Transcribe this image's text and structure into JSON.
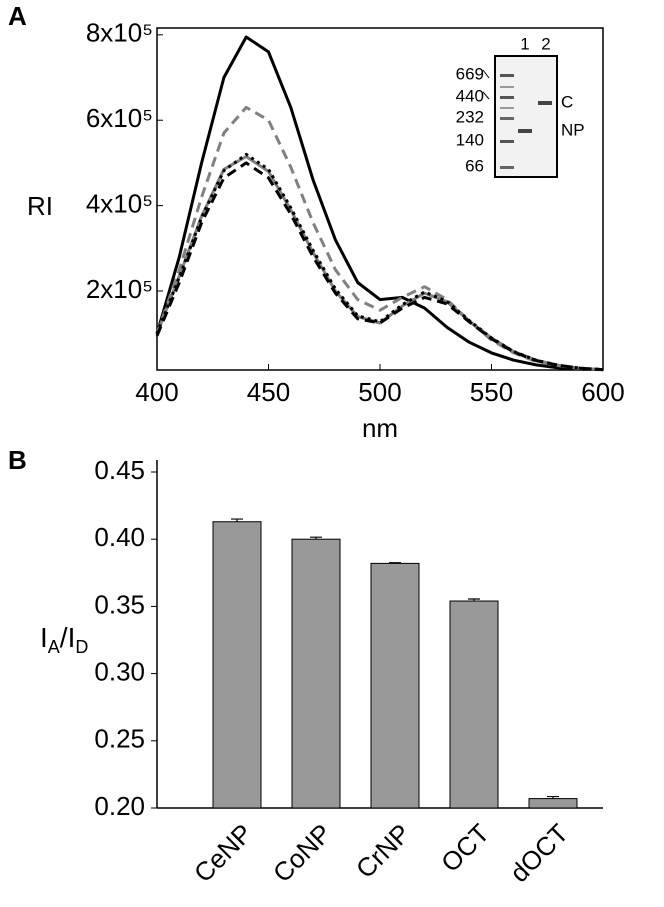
{
  "chart_data": [
    {
      "type": "line",
      "panel": "A",
      "ylabel": "RI",
      "xlabel": "nm",
      "x": [
        400,
        410,
        420,
        430,
        440,
        450,
        460,
        470,
        480,
        490,
        500,
        510,
        520,
        530,
        540,
        550,
        560,
        570,
        580,
        590,
        600
      ],
      "xlim": [
        400,
        600
      ],
      "xticks": [
        400,
        450,
        500,
        550,
        600
      ],
      "ylim": [
        15000,
        816000
      ],
      "yticks": [
        {
          "value": 200000,
          "label": "2x10⁵"
        },
        {
          "value": 400000,
          "label": "4x10⁵"
        },
        {
          "value": 600000,
          "label": "6x10⁵"
        },
        {
          "value": 800000,
          "label": "8x10⁵"
        }
      ],
      "series": [
        {
          "color": "#000000",
          "dash": "solid",
          "values": [
            100000,
            280000,
            500000,
            700000,
            795000,
            760000,
            630000,
            460000,
            320000,
            220000,
            180000,
            185000,
            160000,
            115000,
            80000,
            55000,
            38000,
            27000,
            20000,
            17000,
            16000
          ]
        },
        {
          "color": "#808080",
          "dash": "dashed",
          "values": [
            100000,
            250000,
            420000,
            570000,
            630000,
            600000,
            490000,
            360000,
            250000,
            180000,
            155000,
            185000,
            210000,
            180000,
            130000,
            85000,
            55000,
            35000,
            25000,
            18000,
            16000
          ]
        },
        {
          "color": "#808080",
          "dash": "solid",
          "values": [
            100000,
            235000,
            375000,
            485000,
            515000,
            480000,
            390000,
            290000,
            200000,
            140000,
            125000,
            165000,
            195000,
            175000,
            130000,
            90000,
            58000,
            38000,
            26000,
            19000,
            16000
          ]
        },
        {
          "color": "#000000",
          "dash": "dotted",
          "values": [
            100000,
            232000,
            372000,
            482000,
            520000,
            485000,
            395000,
            295000,
            205000,
            142000,
            128000,
            168000,
            198000,
            176000,
            131000,
            90000,
            58000,
            38000,
            26000,
            19000,
            16000
          ]
        },
        {
          "color": "#000000",
          "dash": "dashed",
          "values": [
            95000,
            220000,
            360000,
            465000,
            500000,
            465000,
            380000,
            280000,
            195000,
            135000,
            125000,
            160000,
            185000,
            170000,
            128000,
            88000,
            57000,
            37000,
            26000,
            19000,
            16000
          ]
        }
      ],
      "inset": {
        "lane_labels": [
          "1",
          "2"
        ],
        "marker_labels": [
          "669",
          "440",
          "232",
          "140",
          "66"
        ],
        "band_labels": [
          "C",
          "NP"
        ]
      }
    },
    {
      "type": "bar",
      "panel": "B",
      "ylabel": [
        {
          "text": "I",
          "sub": "A"
        },
        {
          "text": "/I",
          "sub": "D"
        }
      ],
      "categories": [
        "CeNP",
        "CoNP",
        "CrNP",
        "OCT",
        "dOCT"
      ],
      "values": [
        0.413,
        0.4,
        0.382,
        0.354,
        0.207
      ],
      "errors": [
        0.002,
        0.0015,
        0.0005,
        0.0015,
        0.0015
      ],
      "color": "#999999",
      "ylim": [
        0.2,
        0.45
      ],
      "yticks": [
        {
          "value": 0.2,
          "label": "0.20"
        },
        0.25,
        {
          "value": 0.3,
          "label": "0.30"
        },
        0.35,
        {
          "value": 0.4,
          "label": "0.40"
        },
        0.45
      ]
    }
  ]
}
